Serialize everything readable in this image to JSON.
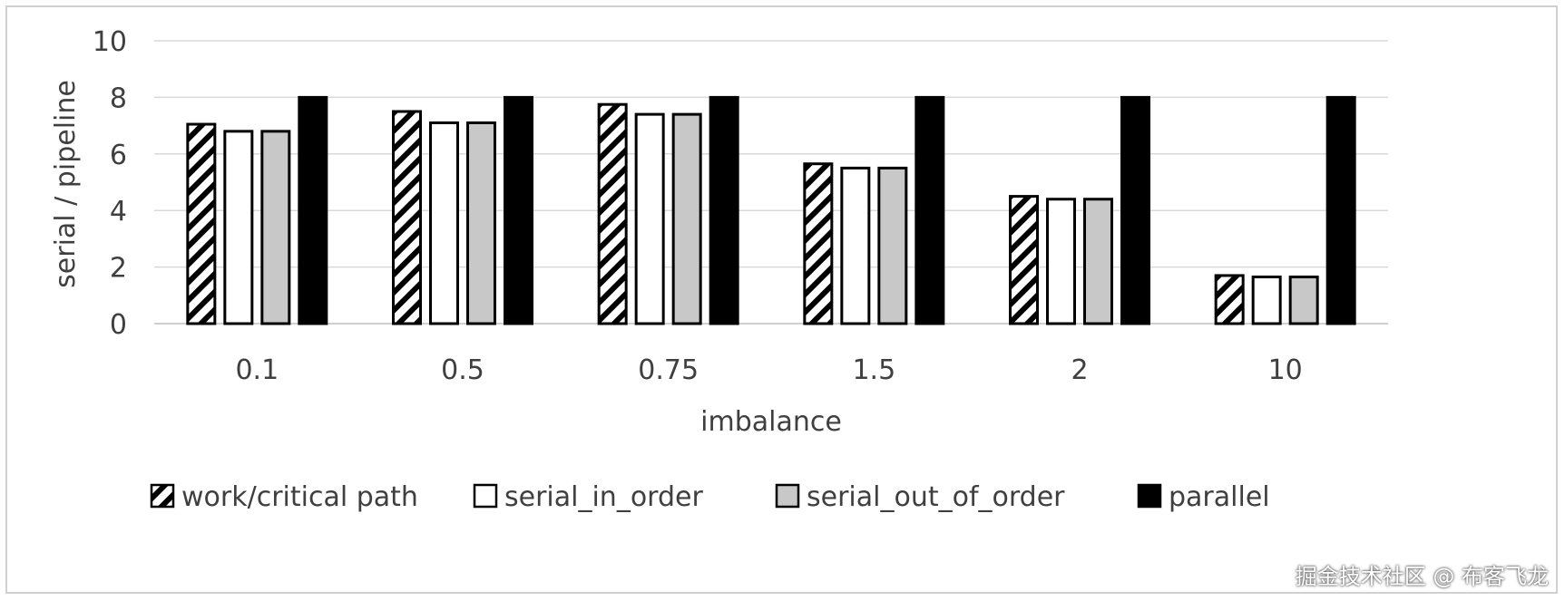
{
  "chart_data": {
    "type": "bar",
    "categories": [
      "0.1",
      "0.5",
      "0.75",
      "1.5",
      "2",
      "10"
    ],
    "xlabel": "imbalance",
    "ylabel": "serial / pipeline",
    "ylim": [
      0,
      10
    ],
    "yticks": [
      0,
      2,
      4,
      6,
      8,
      10
    ],
    "grid": true,
    "legend_position": "bottom",
    "series": [
      {
        "name": "work/critical path",
        "fill": "hatch",
        "values": [
          7.05,
          7.5,
          7.75,
          5.65,
          4.5,
          1.7
        ]
      },
      {
        "name": "serial_in_order",
        "fill": "#ffffff",
        "values": [
          6.8,
          7.1,
          7.4,
          5.5,
          4.4,
          1.65
        ]
      },
      {
        "name": "serial_out_of_order",
        "fill": "#c8c8c8",
        "values": [
          6.8,
          7.1,
          7.4,
          5.5,
          4.4,
          1.65
        ]
      },
      {
        "name": "parallel",
        "fill": "#000000",
        "values": [
          8,
          8,
          8,
          8,
          8,
          8
        ]
      }
    ]
  },
  "watermark": "掘金技术社区 @ 布客飞龙"
}
